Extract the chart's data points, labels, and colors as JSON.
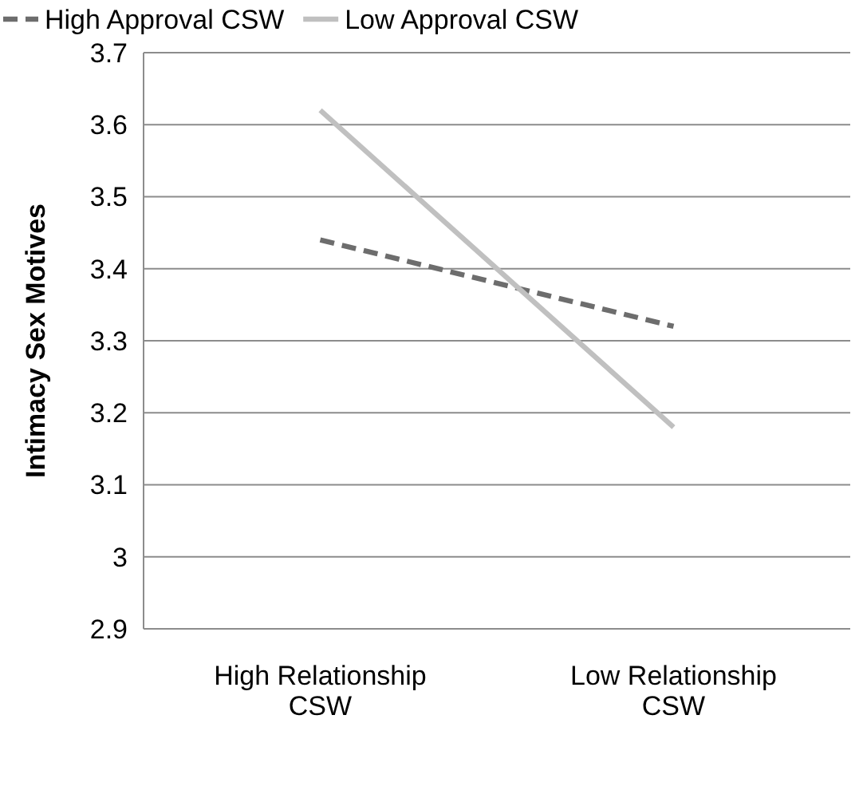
{
  "chart_data": {
    "type": "line",
    "ylabel": "Intimacy Sex Motives",
    "categories": [
      "High Relationship CSW",
      "Low Relationship CSW"
    ],
    "series": [
      {
        "name": "High Approval CSW",
        "color": "#6d6d6d",
        "values": [
          3.44,
          3.32
        ],
        "line_style": "dashed"
      },
      {
        "name": "Low Approval CSW",
        "color": "#c0c0c0",
        "values": [
          3.62,
          3.18
        ],
        "line_style": "solid"
      }
    ],
    "ylim": [
      2.9,
      3.7
    ],
    "yticks": [
      2.9,
      3,
      3.1,
      3.2,
      3.3,
      3.4,
      3.5,
      3.6,
      3.7
    ],
    "grid": "y",
    "legend": "top left",
    "marker": "none"
  }
}
